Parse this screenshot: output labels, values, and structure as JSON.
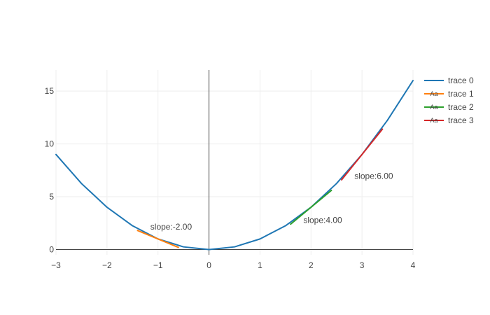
{
  "chart_data": {
    "type": "line",
    "title": "",
    "xlabel": "",
    "ylabel": "",
    "xlim": [
      -3,
      4
    ],
    "ylim": [
      -0.5,
      17
    ],
    "x_ticks": [
      -3,
      -2,
      -1,
      0,
      1,
      2,
      3,
      4
    ],
    "y_ticks": [
      0,
      5,
      10,
      15
    ],
    "x_tick_labels": [
      "−3",
      "−2",
      "−1",
      "0",
      "1",
      "2",
      "3",
      "4"
    ],
    "y_tick_labels": [
      "0",
      "5",
      "10",
      "15"
    ],
    "grid": true,
    "legend_position": "right",
    "legend_glyph": "Aa",
    "series": [
      {
        "name": "trace 0",
        "color": "#1f77b4",
        "x": [
          -3.0,
          -2.5,
          -2.0,
          -1.5,
          -1.0,
          -0.5,
          0.0,
          0.5,
          1.0,
          1.5,
          2.0,
          2.5,
          3.0,
          3.5,
          4.0
        ],
        "y": [
          9.0,
          6.25,
          4.0,
          2.25,
          1.0,
          0.25,
          0.0,
          0.25,
          1.0,
          2.25,
          4.0,
          6.25,
          9.0,
          12.25,
          16.0
        ]
      },
      {
        "name": "trace 1",
        "color": "#ff7f0e",
        "x": [
          -1.4,
          -0.6
        ],
        "y": [
          1.8,
          0.2
        ]
      },
      {
        "name": "trace 2",
        "color": "#2ca02c",
        "x": [
          1.6,
          2.4
        ],
        "y": [
          2.4,
          5.6
        ]
      },
      {
        "name": "trace 3",
        "color": "#d62728",
        "x": [
          2.6,
          3.4
        ],
        "y": [
          6.6,
          11.4
        ]
      }
    ],
    "annotations": [
      {
        "text": "slope:-2.00",
        "x": -1.15,
        "y": 1.9
      },
      {
        "text": "slope:4.00",
        "x": 1.85,
        "y": 2.5
      },
      {
        "text": "slope:6.00",
        "x": 2.85,
        "y": 6.7
      }
    ]
  }
}
